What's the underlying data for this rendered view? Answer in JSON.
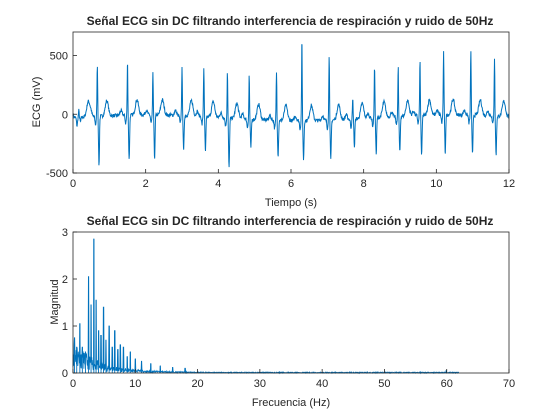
{
  "chart_data": [
    {
      "type": "line",
      "title": "Señal ECG sin DC filtrando interferencia de respiración y ruido de 50Hz",
      "xlabel": "Tiempo (s)",
      "ylabel": "ECG (mV)",
      "xlim": [
        0,
        12
      ],
      "ylim": [
        -500,
        700
      ],
      "xticks": [
        "0",
        "2",
        "4",
        "6",
        "8",
        "10",
        "12"
      ],
      "yticks": [
        "-500",
        "0",
        "500"
      ],
      "grid": false,
      "color": "#0072bd",
      "beats": [
        {
          "t": 0.16,
          "r": 60,
          "s": -40
        },
        {
          "t": 0.67,
          "r": 445,
          "s": -420
        },
        {
          "t": 1.5,
          "r": 465,
          "s": -380
        },
        {
          "t": 2.2,
          "r": 350,
          "s": -370
        },
        {
          "t": 3.0,
          "r": 400,
          "s": -310
        },
        {
          "t": 3.6,
          "r": 420,
          "s": -310
        },
        {
          "t": 4.25,
          "r": 400,
          "s": -430
        },
        {
          "t": 4.85,
          "r": 380,
          "s": -240
        },
        {
          "t": 5.6,
          "r": 415,
          "s": -300
        },
        {
          "t": 6.3,
          "r": 700,
          "s": -330
        },
        {
          "t": 7.05,
          "r": 560,
          "s": -340
        },
        {
          "t": 7.7,
          "r": 170,
          "s": -240
        },
        {
          "t": 8.3,
          "r": 440,
          "s": -310
        },
        {
          "t": 8.95,
          "r": 420,
          "s": -310
        },
        {
          "t": 9.55,
          "r": 480,
          "s": -340
        },
        {
          "t": 10.2,
          "r": 530,
          "s": -330
        },
        {
          "t": 10.95,
          "r": 550,
          "s": -340
        },
        {
          "t": 11.6,
          "r": 490,
          "s": -330
        }
      ]
    },
    {
      "type": "line",
      "title": "Señal ECG sin DC filtrando interferencia de respiración y ruido de 50Hz",
      "xlabel": "Frecuencia (Hz)",
      "ylabel": "Magnitud",
      "xlim": [
        0,
        70
      ],
      "ylim": [
        0,
        3
      ],
      "xticks": [
        "0",
        "10",
        "20",
        "30",
        "40",
        "50",
        "60",
        "70"
      ],
      "yticks": [
        "0",
        "1",
        "2",
        "3"
      ],
      "grid": false,
      "color": "#0072bd",
      "peaks": [
        {
          "f": 0.25,
          "m": 0.75
        },
        {
          "f": 0.6,
          "m": 0.55
        },
        {
          "f": 1.1,
          "m": 1.05
        },
        {
          "f": 1.5,
          "m": 0.55
        },
        {
          "f": 2.0,
          "m": 0.45
        },
        {
          "f": 2.5,
          "m": 2.05
        },
        {
          "f": 2.9,
          "m": 1.45
        },
        {
          "f": 3.35,
          "m": 2.85
        },
        {
          "f": 3.7,
          "m": 1.55
        },
        {
          "f": 4.1,
          "m": 0.9
        },
        {
          "f": 4.5,
          "m": 0.8
        },
        {
          "f": 4.9,
          "m": 1.4
        },
        {
          "f": 5.3,
          "m": 0.7
        },
        {
          "f": 5.8,
          "m": 1.0
        },
        {
          "f": 6.3,
          "m": 0.55
        },
        {
          "f": 6.7,
          "m": 0.9
        },
        {
          "f": 7.2,
          "m": 0.5
        },
        {
          "f": 7.6,
          "m": 0.6
        },
        {
          "f": 8.1,
          "m": 0.55
        },
        {
          "f": 8.7,
          "m": 0.35
        },
        {
          "f": 9.2,
          "m": 0.45
        },
        {
          "f": 10.0,
          "m": 0.3
        },
        {
          "f": 11.0,
          "m": 0.25
        },
        {
          "f": 12.5,
          "m": 0.2
        },
        {
          "f": 14.0,
          "m": 0.15
        },
        {
          "f": 16.0,
          "m": 0.12
        },
        {
          "f": 18.0,
          "m": 0.1
        },
        {
          "f": 59.9,
          "m": 0.06
        }
      ]
    }
  ]
}
